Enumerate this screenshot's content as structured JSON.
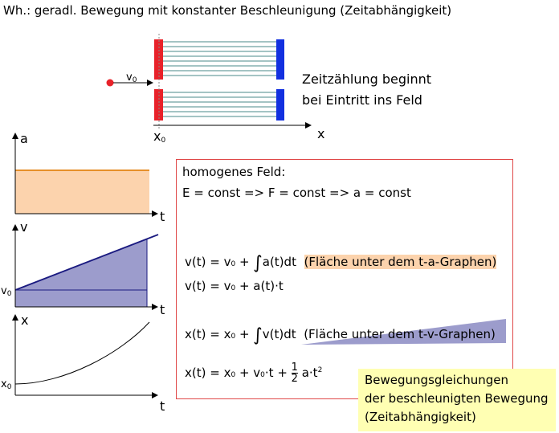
{
  "title": "Wh.: geradl. Bewegung mit konstanter Beschleunigung (Zeitabhängigkeit)",
  "note": {
    "line1": "Zeitzählung beginnt",
    "line2": "bei Eintritt ins Feld"
  },
  "setup": {
    "velocity_label": "v",
    "velocity_sub": "0",
    "x0_label": "x",
    "x0_sub": "0",
    "x_axis_label": "x"
  },
  "graphs": {
    "a": {
      "ylabel": "a",
      "xlabel": "t"
    },
    "v": {
      "ylabel": "v",
      "xlabel": "t",
      "y0_label": "v",
      "y0_sub": "0"
    },
    "x": {
      "ylabel": "x",
      "xlabel": "t",
      "y0_label": "x",
      "y0_sub": "0"
    }
  },
  "box": {
    "line1": "homogenes Feld:",
    "line2": "E = const => F = const => a = const",
    "eq_v1_left": "v(t) = v",
    "eq_v1_sub": "0",
    "eq_v1_mid": " + ",
    "eq_v1_int": "a(t)dt",
    "eq_v1_note": "(Fläche unter dem t-a-Graphen)",
    "eq_v2_left": "v(t) = v",
    "eq_v2_sub": "0",
    "eq_v2_rest": " + a(t)·t",
    "eq_x1_left": "x(t) = x",
    "eq_x1_sub": "0",
    "eq_x1_mid": " + ",
    "eq_x1_int": "v(t)dt",
    "eq_x1_note": "(Fläche unter dem t-v-Graphen)",
    "eq_x2_left": "x(t) = x",
    "eq_x2_sub1": "0",
    "eq_x2_mid": " + v",
    "eq_x2_sub2": "0",
    "eq_x2_mid2": "·t + ",
    "frac_num": "1",
    "frac_den": "2",
    "eq_x2_end": " a·t",
    "eq_x2_sup": "2"
  },
  "summary": {
    "line1": "Bewegungsgleichungen",
    "line2": "der beschleunigten Bewegung",
    "line3": "(Zeitabhängigkeit)"
  },
  "colors": {
    "field_plate_positive": "#e8222a",
    "field_plate_negative": "#1230e0",
    "field_lines": "#4a8a8a",
    "a_area": "#fcd3ad",
    "a_line": "#e6902a",
    "v_area": "#9c9ccc",
    "v_line": "#1a1a80",
    "box_border": "#e04848",
    "summary_bg": "#ffffb3"
  }
}
